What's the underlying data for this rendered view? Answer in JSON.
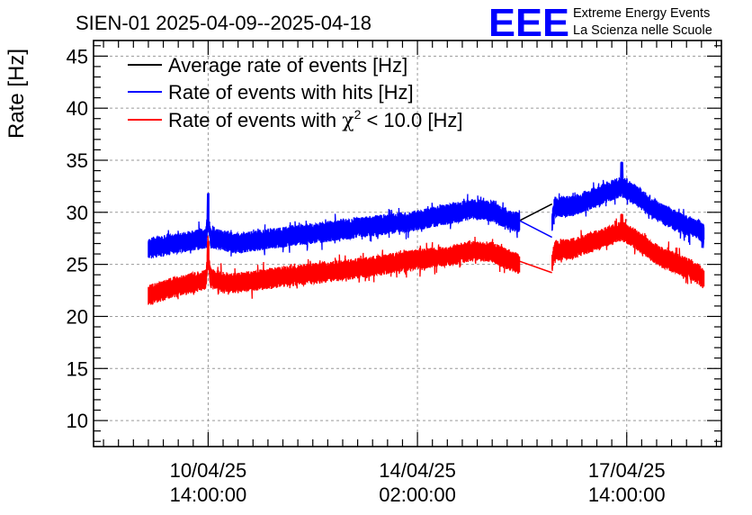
{
  "chart_data": {
    "type": "line",
    "title": "SIEN-01 2025-04-09--2025-04-18",
    "xlabel": "",
    "ylabel": "Rate [Hz]",
    "ylim": [
      7.5,
      46.5
    ],
    "yticks": [
      10,
      15,
      20,
      25,
      30,
      35,
      40,
      45
    ],
    "xlim_hours": [
      -32,
      220
    ],
    "xticks": [
      {
        "hours": 14,
        "line1": "10/04/25",
        "line2": "14:00:00"
      },
      {
        "hours": 98,
        "line1": "14/04/25",
        "line2": "02:00:00"
      },
      {
        "hours": 182,
        "line1": "17/04/25",
        "line2": "14:00:00"
      }
    ],
    "grid": true,
    "legend_position": "top-left",
    "series": [
      {
        "name": "Average rate of events [Hz]",
        "color": "#000000",
        "points": [
          [
            139,
            29.2
          ],
          [
            152,
            30.8
          ]
        ]
      },
      {
        "name": "Rate of events with hits [Hz]",
        "color": "#0000ff",
        "noise": 1.0,
        "segments": [
          [
            [
              -10,
              26.5
            ],
            [
              0,
              27.0
            ],
            [
              13,
              27.5
            ],
            [
              14,
              29.5
            ],
            [
              15,
              27.5
            ],
            [
              20,
              27.3
            ],
            [
              25,
              27.0
            ],
            [
              40,
              27.5
            ],
            [
              60,
              28.1
            ],
            [
              80,
              28.7
            ],
            [
              95,
              29.1
            ],
            [
              110,
              29.8
            ],
            [
              120,
              30.3
            ],
            [
              128,
              30.1
            ],
            [
              133,
              29.4
            ],
            [
              139,
              29.0
            ]
          ],
          [
            [
              152,
              29.0
            ],
            [
              153,
              30.5
            ],
            [
              160,
              30.6
            ],
            [
              170,
              31.5
            ],
            [
              180,
              32.5
            ],
            [
              185,
              31.7
            ],
            [
              195,
              30.0
            ],
            [
              205,
              28.8
            ],
            [
              210,
              28.4
            ],
            [
              213,
              28.0
            ]
          ]
        ],
        "gap_link": [
          [
            139,
            29.2
          ],
          [
            152,
            27.6
          ]
        ],
        "spikes": [
          [
            14,
            31.8
          ],
          [
            180,
            34.8
          ]
        ]
      },
      {
        "name": "Rate of events with chi2 < 10.0 [Hz]",
        "legend_prefix": "Rate of events with ",
        "legend_symbol": "χ",
        "legend_sup": "2",
        "legend_suffix": " < 10.0 [Hz]",
        "color": "#ff0000",
        "noise": 1.0,
        "segments": [
          [
            [
              -10,
              22.0
            ],
            [
              0,
              22.8
            ],
            [
              13,
              23.5
            ],
            [
              14,
              25.8
            ],
            [
              15,
              23.6
            ],
            [
              20,
              23.3
            ],
            [
              25,
              23.2
            ],
            [
              40,
              23.7
            ],
            [
              60,
              24.2
            ],
            [
              80,
              24.8
            ],
            [
              95,
              25.4
            ],
            [
              110,
              25.8
            ],
            [
              120,
              26.3
            ],
            [
              128,
              26.2
            ],
            [
              133,
              25.6
            ],
            [
              139,
              25.0
            ]
          ],
          [
            [
              152,
              25.0
            ],
            [
              153,
              26.3
            ],
            [
              160,
              26.5
            ],
            [
              170,
              27.3
            ],
            [
              180,
              28.2
            ],
            [
              185,
              27.5
            ],
            [
              195,
              25.8
            ],
            [
              205,
              24.8
            ],
            [
              210,
              24.2
            ],
            [
              213,
              23.6
            ]
          ]
        ],
        "gap_link": [
          [
            139,
            25.3
          ],
          [
            152,
            24.2
          ]
        ],
        "spikes": [
          [
            14,
            27.2
          ],
          [
            180,
            29.8
          ]
        ]
      }
    ]
  },
  "logo": {
    "letters": "EEE",
    "line1": "Extreme Energy Events",
    "line2": "La Scienza nelle Scuole",
    "color": "#0000ff"
  }
}
